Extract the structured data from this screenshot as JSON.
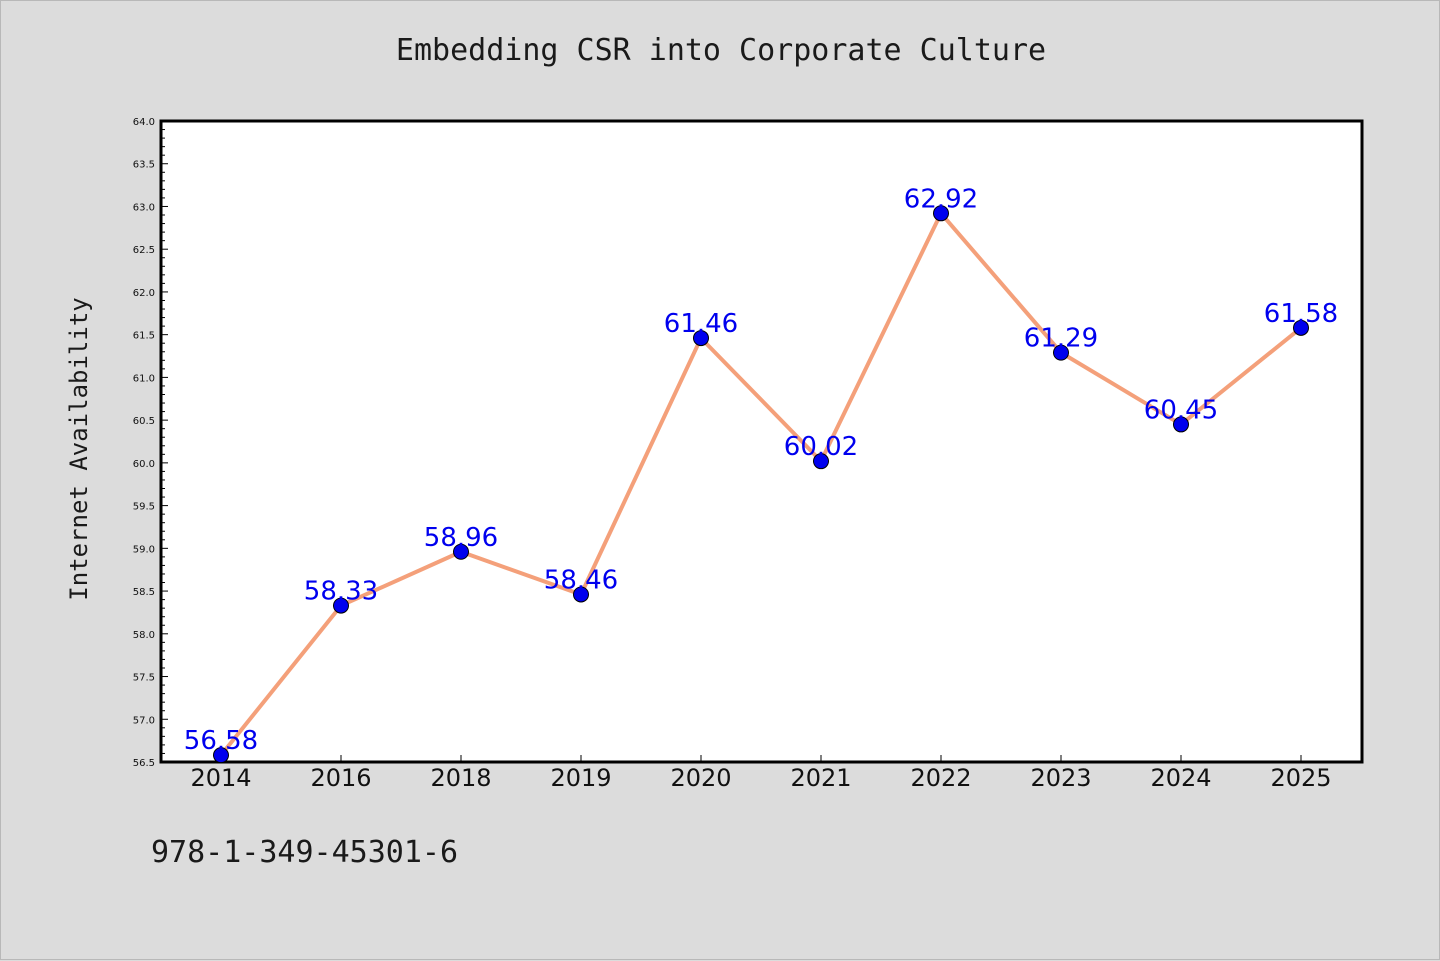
{
  "figure": {
    "footer_code": "978-1-349-45301-6"
  },
  "colors": {
    "background": "#dcdcdc",
    "plot_background": "#ffffff",
    "line": "#f4a07a",
    "marker": "#0000ee",
    "data_label": "#0000ee"
  },
  "chart_data": {
    "type": "line",
    "title": "Embedding CSR into Corporate Culture",
    "xlabel": "",
    "ylabel": "Internet Availability",
    "categories": [
      "2014",
      "2016",
      "2018",
      "2019",
      "2020",
      "2021",
      "2022",
      "2023",
      "2024",
      "2025"
    ],
    "series": [
      {
        "values": [
          56.58,
          58.33,
          58.96,
          58.46,
          61.46,
          60.02,
          62.92,
          61.29,
          60.45,
          61.58
        ],
        "labels": [
          "56.58",
          "58.33",
          "58.96",
          "58.46",
          "61.46",
          "60.02",
          "62.92",
          "61.29",
          "60.45",
          "61.58"
        ]
      }
    ],
    "ylim": [
      56.5,
      64.0
    ],
    "yticks": [
      "56.5",
      "57.0",
      "57.5",
      "58.0",
      "58.5",
      "59.0",
      "59.5",
      "60.0",
      "60.5",
      "61.0",
      "61.5",
      "62.0",
      "62.5",
      "63.0",
      "63.5",
      "64.0"
    ],
    "grid": false,
    "legend": "none"
  }
}
